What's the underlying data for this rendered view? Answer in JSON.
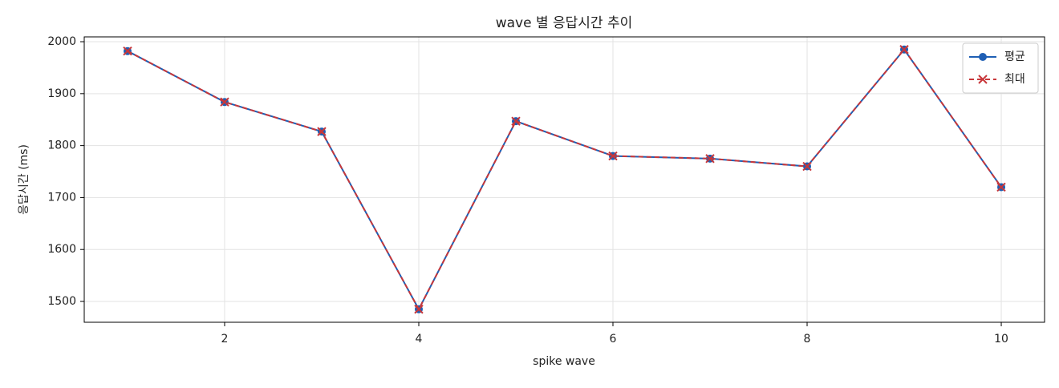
{
  "chart_data": {
    "type": "line",
    "title": "wave 별 응답시간 추이",
    "x_label": "spike wave",
    "y_label": "응답시간 (ms)",
    "x": [
      1,
      2,
      3,
      4,
      5,
      6,
      7,
      8,
      9,
      10
    ],
    "series": [
      {
        "name": "평균",
        "color": "#1f5fb4",
        "linestyle": "solid",
        "marker": "circle",
        "values": [
          1982,
          1884,
          1827,
          1485,
          1847,
          1780,
          1775,
          1760,
          1985,
          1720
        ]
      },
      {
        "name": "최대",
        "color": "#c8373a",
        "linestyle": "dashed",
        "marker": "x",
        "values": [
          1982,
          1884,
          1827,
          1485,
          1847,
          1780,
          1775,
          1760,
          1985,
          1720
        ]
      }
    ],
    "xlim": [
      0.554,
      10.446
    ],
    "xticks": [
      2,
      4,
      6,
      8,
      10
    ],
    "ylim": [
      1459.9,
      2009.3
    ],
    "yticks": [
      1500,
      1600,
      1700,
      1800,
      1900,
      2000
    ],
    "grid": true,
    "legend": "upper-right"
  }
}
